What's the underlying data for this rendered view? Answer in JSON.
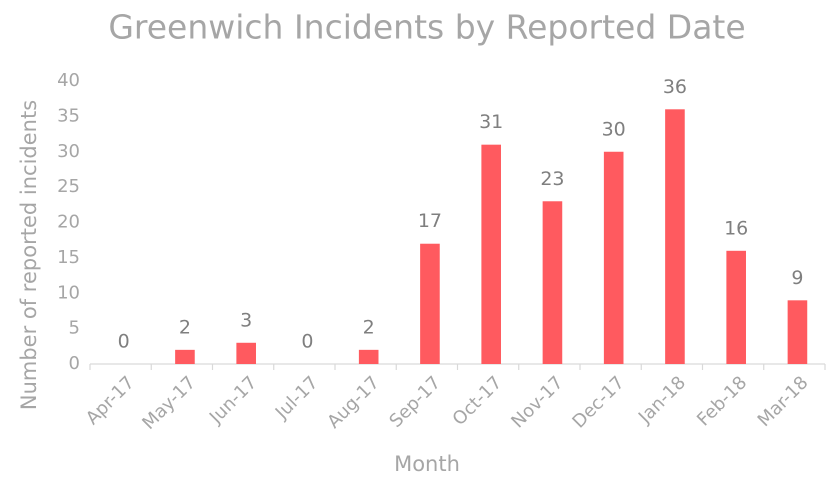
{
  "chart_data": {
    "type": "bar",
    "title": "Greenwich Incidents by Reported Date",
    "x_label": "Month",
    "y_label": "Number of reported incidents",
    "categories": [
      "Apr-17",
      "May-17",
      "Jun-17",
      "Jul-17",
      "Aug-17",
      "Sep-17",
      "Oct-17",
      "Nov-17",
      "Dec-17",
      "Jan-18",
      "Feb-18",
      "Mar-18"
    ],
    "values": [
      0,
      2,
      3,
      0,
      2,
      17,
      31,
      23,
      30,
      36,
      16,
      9
    ],
    "color": "#ff5a5f",
    "ylim": [
      0,
      40
    ],
    "yticks": [
      0,
      5,
      10,
      15,
      20,
      25,
      30,
      35,
      40
    ],
    "grid": false
  }
}
